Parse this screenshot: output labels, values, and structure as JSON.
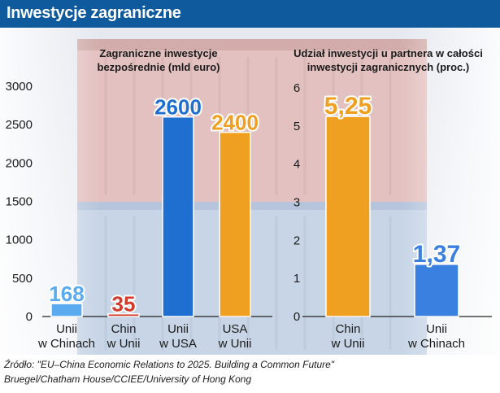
{
  "title": "Inwestycje zagraniczne",
  "source": {
    "line1": "Źródło: \"EU–China Economic Relations to 2025. Building a Common Future\"",
    "line2": "Bruegel/Chatham House/CCIEE/University of Hong Kong"
  },
  "colors": {
    "header": "#0f5a9c",
    "light_blue": "#5aaaf0",
    "red": "#d43a2a",
    "dark_blue": "#1f6fd0",
    "orange": "#f0a020",
    "mid_blue": "#3a80e0"
  },
  "chart_data": [
    {
      "type": "bar",
      "title": "Zagraniczne inwestycje\nbezpośrednie (mld euro)",
      "title_lines": [
        "Zagraniczne inwestycje",
        "bezpośrednie (mld euro)"
      ],
      "categories": [
        "Unii\nw Chinach",
        "Chin\nw Unii",
        "Unii\nw USA",
        "USA\nw Unii"
      ],
      "category_lines": [
        [
          "Unii",
          "w Chinach"
        ],
        [
          "Chin",
          "w Unii"
        ],
        [
          "Unii",
          "w USA"
        ],
        [
          "USA",
          "w Unii"
        ]
      ],
      "values": [
        168,
        35,
        2600,
        2400
      ],
      "value_labels": [
        "168",
        "35",
        "2600",
        "2400"
      ],
      "bar_colors": [
        "#5aaaf0",
        "#d43a2a",
        "#1f6fd0",
        "#f0a020"
      ],
      "ylim": [
        0,
        3000
      ],
      "yticks": [
        0,
        500,
        1000,
        1500,
        2000,
        2500,
        3000
      ],
      "ytick_labels": [
        "0",
        "500",
        "1000",
        "1500",
        "2000",
        "2500",
        "3000"
      ],
      "grid": false
    },
    {
      "type": "bar",
      "title": "Udział inwestycji u partnera w całości\ninwestycji zagranicznych (proc.)",
      "title_lines": [
        "Udział inwestycji u partnera w całości",
        "inwestycji zagranicznych (proc.)"
      ],
      "categories": [
        "Chin\nw Unii",
        "Unii\nw Chinach"
      ],
      "category_lines": [
        [
          "Chin",
          "w Unii"
        ],
        [
          "Unii",
          "w Chinach"
        ]
      ],
      "values": [
        5.25,
        1.37
      ],
      "value_labels": [
        "5,25",
        "1,37"
      ],
      "bar_colors": [
        "#f0a020",
        "#3a80e0"
      ],
      "ylim": [
        0,
        6
      ],
      "yticks": [
        0,
        1,
        2,
        3,
        4,
        5,
        6
      ],
      "ytick_labels": [
        "0",
        "1",
        "2",
        "3",
        "4",
        "5",
        "6"
      ],
      "grid": false
    }
  ]
}
